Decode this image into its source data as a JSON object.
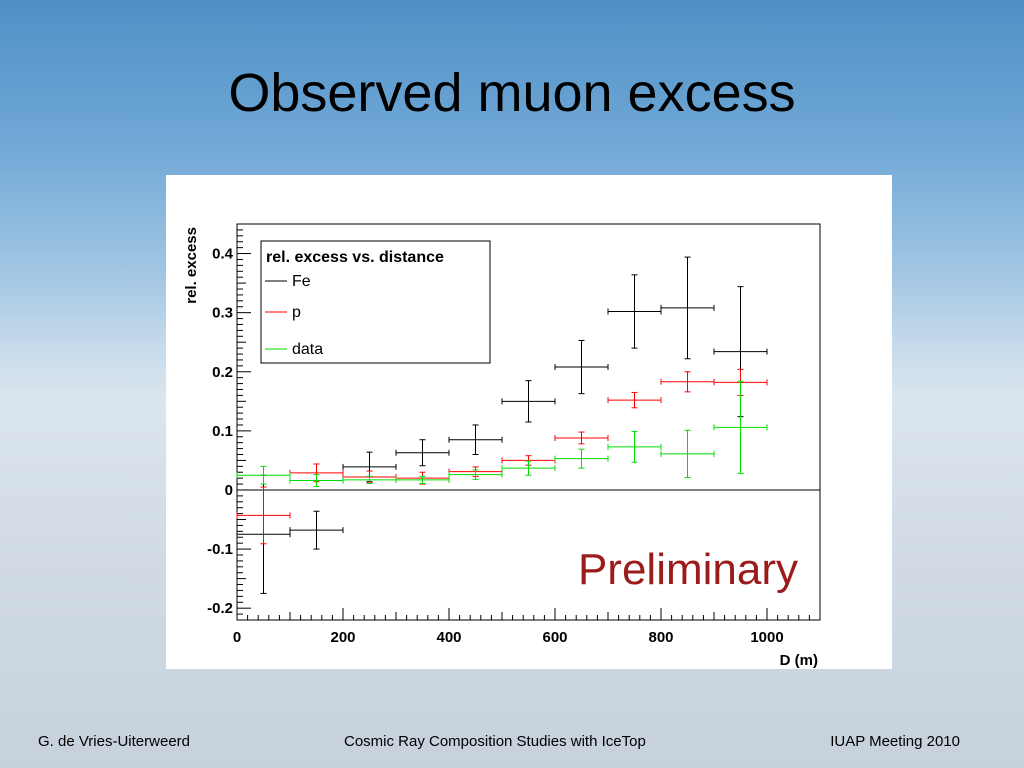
{
  "slide": {
    "title": "Observed muon excess",
    "footer_left": "G. de Vries-Uiterweerd",
    "footer_center": "Cosmic Ray Composition Studies with IceTop",
    "footer_right": "IUAP Meeting 2010"
  },
  "chart_data": {
    "type": "scatter",
    "xlabel": "D (m)",
    "ylabel": "rel. excess",
    "xlim": [
      0,
      1100
    ],
    "ylim": [
      -0.22,
      0.45
    ],
    "x_ticks": [
      0,
      200,
      400,
      600,
      800,
      1000
    ],
    "x_tick_labels": [
      "0",
      "200",
      "400",
      "600",
      "800",
      "1000"
    ],
    "y_ticks": [
      -0.2,
      -0.1,
      0,
      0.1,
      0.2,
      0.3,
      0.4
    ],
    "y_tick_labels": [
      "-0.2",
      "-0.1",
      "0",
      "0.1",
      "0.2",
      "0.3",
      "0.4"
    ],
    "zero_line": true,
    "annotation": "Preliminary",
    "annotation_color": "#9b1b1b",
    "legend": {
      "title": "rel. excess vs. distance",
      "position": "top-left"
    },
    "series": [
      {
        "name": "Fe",
        "color": "#000000",
        "points": [
          {
            "x": 50,
            "xerr": 50,
            "y": -0.075,
            "yerr": 0.1
          },
          {
            "x": 150,
            "xerr": 50,
            "y": -0.068,
            "yerr": 0.032
          },
          {
            "x": 250,
            "xerr": 50,
            "y": 0.039,
            "yerr": 0.025
          },
          {
            "x": 350,
            "xerr": 50,
            "y": 0.063,
            "yerr": 0.022
          },
          {
            "x": 450,
            "xerr": 50,
            "y": 0.085,
            "yerr": 0.025
          },
          {
            "x": 550,
            "xerr": 50,
            "y": 0.15,
            "yerr": 0.035
          },
          {
            "x": 650,
            "xerr": 50,
            "y": 0.208,
            "yerr": 0.045
          },
          {
            "x": 750,
            "xerr": 50,
            "y": 0.302,
            "yerr": 0.062
          },
          {
            "x": 850,
            "xerr": 50,
            "y": 0.308,
            "yerr": 0.086
          },
          {
            "x": 950,
            "xerr": 50,
            "y": 0.234,
            "yerr": 0.11
          }
        ]
      },
      {
        "name": "p",
        "color": "#ff0000",
        "points": [
          {
            "x": 50,
            "xerr": 50,
            "y": -0.043,
            "yerr": 0.048
          },
          {
            "x": 150,
            "xerr": 50,
            "y": 0.029,
            "yerr": 0.015
          },
          {
            "x": 250,
            "xerr": 50,
            "y": 0.022,
            "yerr": 0.01
          },
          {
            "x": 350,
            "xerr": 50,
            "y": 0.02,
            "yerr": 0.01
          },
          {
            "x": 450,
            "xerr": 50,
            "y": 0.031,
            "yerr": 0.008
          },
          {
            "x": 550,
            "xerr": 50,
            "y": 0.05,
            "yerr": 0.008
          },
          {
            "x": 650,
            "xerr": 50,
            "y": 0.088,
            "yerr": 0.01
          },
          {
            "x": 750,
            "xerr": 50,
            "y": 0.152,
            "yerr": 0.013
          },
          {
            "x": 850,
            "xerr": 50,
            "y": 0.183,
            "yerr": 0.017
          },
          {
            "x": 950,
            "xerr": 50,
            "y": 0.182,
            "yerr": 0.022
          }
        ]
      },
      {
        "name": "data",
        "color": "#00dd00",
        "points": [
          {
            "x": 50,
            "xerr": 50,
            "y": 0.025,
            "yerr": 0.015
          },
          {
            "x": 150,
            "xerr": 50,
            "y": 0.016,
            "yerr": 0.01
          },
          {
            "x": 250,
            "xerr": 50,
            "y": 0.017,
            "yerr": 0.006
          },
          {
            "x": 350,
            "xerr": 50,
            "y": 0.017,
            "yerr": 0.006
          },
          {
            "x": 450,
            "xerr": 50,
            "y": 0.026,
            "yerr": 0.008
          },
          {
            "x": 550,
            "xerr": 50,
            "y": 0.037,
            "yerr": 0.012
          },
          {
            "x": 650,
            "xerr": 50,
            "y": 0.053,
            "yerr": 0.016
          },
          {
            "x": 750,
            "xerr": 50,
            "y": 0.073,
            "yerr": 0.026
          },
          {
            "x": 850,
            "xerr": 50,
            "y": 0.061,
            "yerr": 0.04
          },
          {
            "x": 950,
            "xerr": 50,
            "y": 0.106,
            "yerr": 0.078
          }
        ]
      }
    ]
  }
}
